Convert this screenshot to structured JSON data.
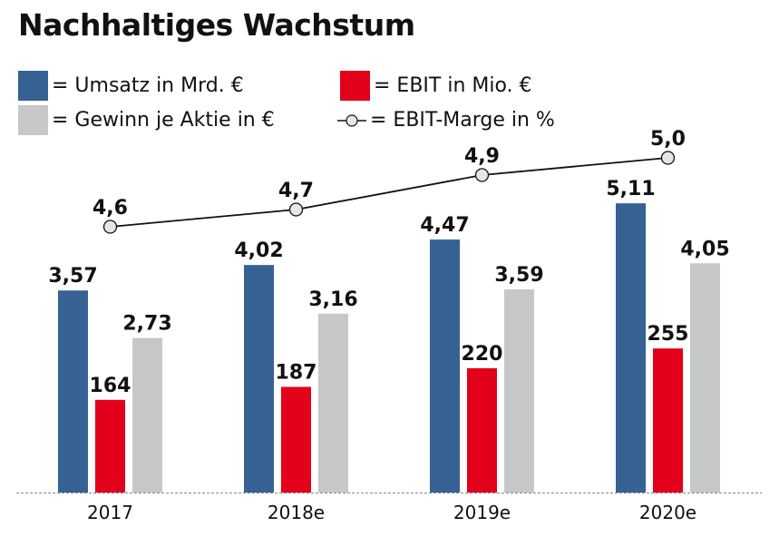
{
  "chart_data": {
    "type": "bar",
    "title": "Nachhaltiges Wachstum",
    "categories": [
      "2017",
      "2018e",
      "2019e",
      "2020e"
    ],
    "series": [
      {
        "name": "= Umsatz in Mrd. €",
        "kind": "bar",
        "color": "#366293",
        "values": [
          3.57,
          4.02,
          4.47,
          5.11
        ],
        "labels": [
          "3,57",
          "4,02",
          "4,47",
          "5,11"
        ]
      },
      {
        "name": "= EBIT in Mio. €",
        "kind": "bar",
        "color": "#e2001a",
        "values": [
          164,
          187,
          220,
          255
        ],
        "labels": [
          "164",
          "187",
          "220",
          "255"
        ]
      },
      {
        "name": "= Gewinn je Aktie in €",
        "kind": "bar",
        "color": "#c6c7c8",
        "values": [
          2.73,
          3.16,
          3.59,
          4.05
        ],
        "labels": [
          "2,73",
          "3,16",
          "3,59",
          "4,05"
        ]
      },
      {
        "name": "= EBIT-Marge in %",
        "kind": "line",
        "color": "#111111",
        "marker_fill": "#e6e6e6",
        "values": [
          4.6,
          4.7,
          4.9,
          5.0
        ],
        "labels": [
          "4,6",
          "4,7",
          "4,9",
          "5,0"
        ]
      }
    ],
    "grid": false,
    "legend": "top-left",
    "baseline": "dashed"
  }
}
